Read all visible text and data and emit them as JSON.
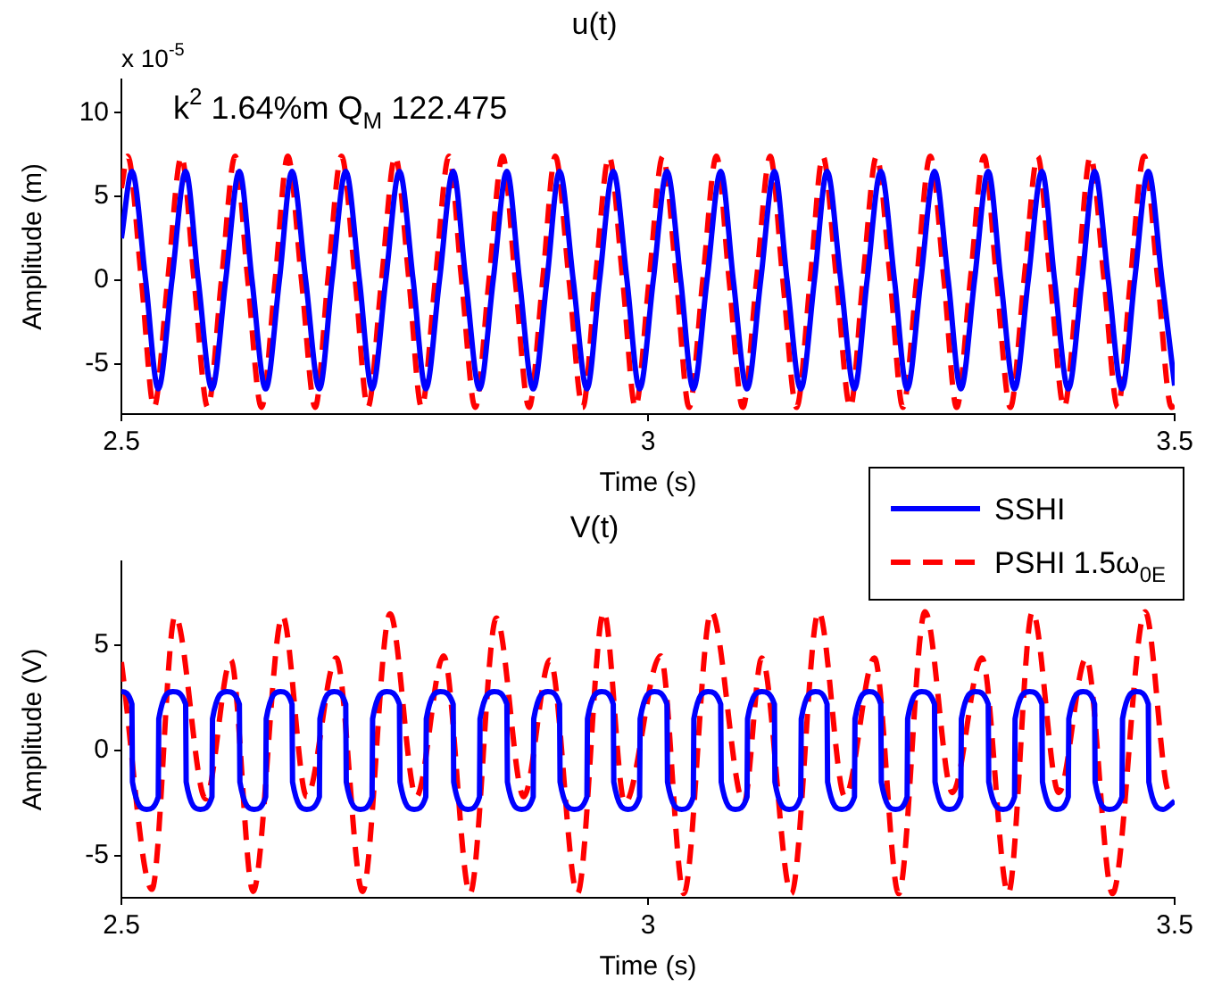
{
  "chart_data": [
    {
      "type": "line",
      "title": "u(t)",
      "xlabel": "Time (s)",
      "ylabel": "Amplitude (m)",
      "xlim": [
        2.5,
        3.5
      ],
      "xticks": [
        2.5,
        3,
        3.5
      ],
      "ylim": [
        -8,
        12
      ],
      "yticks": [
        -5,
        0,
        5,
        10
      ],
      "marker": "none",
      "annotations": [
        "x 10$^{-5}$",
        "k$^{2}$ 1.64%m Q$_{M}$ 122.475"
      ],
      "series": [
        {
          "color": "#0000ff",
          "line_style": "solid",
          "x": [
            2.5,
            2.51,
            2.523,
            2.535,
            2.548,
            2.561,
            2.573,
            2.586,
            2.599,
            2.612,
            2.624,
            2.637,
            2.65,
            2.662,
            2.675,
            2.688,
            2.7,
            2.713,
            2.726,
            2.738,
            2.751,
            2.764,
            2.777,
            2.789,
            2.802,
            2.815,
            2.827,
            2.84,
            2.853,
            2.866,
            2.878,
            2.891,
            2.904,
            2.916,
            2.929,
            2.942,
            2.954,
            2.967,
            2.98,
            2.992,
            3.005,
            3.018,
            3.031,
            3.043,
            3.056,
            3.069,
            3.081,
            3.094,
            3.107,
            3.12,
            3.132,
            3.145,
            3.158,
            3.17,
            3.183,
            3.196,
            3.208,
            3.221,
            3.234,
            3.246,
            3.259,
            3.272,
            3.285,
            3.297,
            3.31,
            3.323,
            3.335,
            3.348,
            3.361,
            3.374,
            3.386,
            3.399,
            3.412,
            3.424,
            3.437,
            3.45,
            3.462,
            3.475,
            3.488,
            3.5
          ],
          "values": [
            2.5,
            6.5,
            0,
            -6.5,
            0,
            6.5,
            0,
            -6.5,
            0,
            6.5,
            0,
            -6.5,
            0,
            6.5,
            0,
            -6.5,
            0,
            6.5,
            0,
            -6.5,
            0,
            6.5,
            0,
            -6.5,
            0,
            6.5,
            0,
            -6.5,
            0,
            6.5,
            0,
            -6.5,
            0,
            6.5,
            0,
            -6.5,
            0,
            6.5,
            0,
            -6.5,
            0,
            6.5,
            0,
            -6.5,
            0,
            6.5,
            0,
            -6.5,
            0,
            6.5,
            0,
            -6.5,
            0,
            6.5,
            0,
            -6.5,
            0,
            6.5,
            0,
            -6.5,
            0,
            6.5,
            0,
            -6.5,
            0,
            6.5,
            0,
            -6.5,
            0,
            6.5,
            0,
            -6.5,
            0,
            6.5,
            0,
            -6.5,
            0,
            6.5,
            0,
            -6.3
          ]
        },
        {
          "color": "#ff0000",
          "line_style": "dashed",
          "x": [
            2.5,
            2.506,
            2.519,
            2.531,
            2.544,
            2.557,
            2.569,
            2.582,
            2.595,
            2.608,
            2.62,
            2.633,
            2.646,
            2.658,
            2.671,
            2.684,
            2.696,
            2.709,
            2.722,
            2.734,
            2.747,
            2.76,
            2.773,
            2.785,
            2.798,
            2.811,
            2.823,
            2.836,
            2.849,
            2.862,
            2.874,
            2.887,
            2.9,
            2.912,
            2.925,
            2.938,
            2.95,
            2.963,
            2.976,
            2.988,
            3.001,
            3.014,
            3.027,
            3.039,
            3.052,
            3.065,
            3.077,
            3.09,
            3.103,
            3.116,
            3.128,
            3.141,
            3.154,
            3.166,
            3.179,
            3.192,
            3.204,
            3.217,
            3.23,
            3.242,
            3.255,
            3.268,
            3.281,
            3.293,
            3.306,
            3.319,
            3.331,
            3.344,
            3.357,
            3.37,
            3.382,
            3.395,
            3.408,
            3.42,
            3.433,
            3.446,
            3.458,
            3.471,
            3.484,
            3.497,
            3.5
          ],
          "values": [
            5.5,
            7.4,
            0,
            -7.6,
            0,
            7.4,
            0,
            -7.6,
            0,
            7.4,
            0,
            -7.6,
            0,
            7.4,
            0,
            -7.6,
            0,
            7.4,
            0,
            -7.6,
            0,
            7.4,
            0,
            -7.6,
            0,
            7.4,
            0,
            -7.6,
            0,
            7.4,
            0,
            -7.6,
            0,
            7.4,
            0,
            -7.6,
            0,
            7.4,
            0,
            -7.6,
            0,
            7.4,
            0,
            -7.6,
            0,
            7.4,
            0,
            -7.6,
            0,
            7.4,
            0,
            -7.6,
            0,
            7.4,
            0,
            -7.6,
            0,
            7.4,
            0,
            -7.6,
            0,
            7.4,
            0,
            -7.6,
            0,
            7.4,
            0,
            -7.6,
            0,
            7.4,
            0,
            -7.6,
            0,
            7.4,
            0,
            -7.6,
            0,
            7.4,
            0,
            -7.6,
            -7.5
          ]
        }
      ]
    },
    {
      "type": "line",
      "title": "V(t)",
      "xlabel": "Time (s)",
      "ylabel": "Amplitude (V)",
      "xlim": [
        2.5,
        3.5
      ],
      "xticks": [
        2.5,
        3,
        3.5
      ],
      "ylim": [
        -7,
        9
      ],
      "yticks": [
        -5,
        0,
        5
      ],
      "marker": "none",
      "legend": "top right",
      "series": [
        {
          "name": "SSHI",
          "color": "#0000ff",
          "line_style": "solid",
          "x": [
            2.5,
            2.51,
            2.5105,
            2.524,
            2.535,
            2.5355,
            2.549,
            2.561,
            2.5615,
            2.575,
            2.586,
            2.5865,
            2.6,
            2.612,
            2.6125,
            2.626,
            2.637,
            2.6375,
            2.651,
            2.662,
            2.6625,
            2.676,
            2.688,
            2.6885,
            2.702,
            2.713,
            2.7135,
            2.727,
            2.738,
            2.7385,
            2.752,
            2.764,
            2.7645,
            2.778,
            2.789,
            2.7895,
            2.803,
            2.815,
            2.8155,
            2.829,
            2.84,
            2.8405,
            2.854,
            2.866,
            2.8665,
            2.88,
            2.891,
            2.8915,
            2.905,
            2.916,
            2.9165,
            2.93,
            2.942,
            2.9425,
            2.956,
            2.967,
            2.9675,
            2.981,
            2.992,
            2.9925,
            3.006,
            3.018,
            3.0185,
            3.032,
            3.043,
            3.0435,
            3.057,
            3.069,
            3.0695,
            3.083,
            3.094,
            3.0945,
            3.108,
            3.12,
            3.1205,
            3.134,
            3.145,
            3.1455,
            3.159,
            3.17,
            3.1705,
            3.184,
            3.196,
            3.1965,
            3.21,
            3.221,
            3.2215,
            3.235,
            3.246,
            3.2465,
            3.26,
            3.272,
            3.2725,
            3.286,
            3.297,
            3.2975,
            3.311,
            3.323,
            3.3235,
            3.337,
            3.348,
            3.3485,
            3.362,
            3.374,
            3.3745,
            3.388,
            3.399,
            3.3995,
            3.413,
            3.424,
            3.4245,
            3.438,
            3.45,
            3.4505,
            3.464,
            3.475,
            3.4755,
            3.489,
            3.5
          ],
          "values": [
            2.8,
            2.2,
            -1.5,
            -2.8,
            -2.2,
            1.5,
            2.8,
            2.2,
            -1.5,
            -2.8,
            -2.2,
            1.5,
            2.8,
            2.2,
            -1.5,
            -2.8,
            -2.2,
            1.5,
            2.8,
            2.2,
            -1.5,
            -2.8,
            -2.2,
            1.5,
            2.8,
            2.2,
            -1.5,
            -2.8,
            -2.2,
            1.5,
            2.8,
            2.2,
            -1.5,
            -2.8,
            -2.2,
            1.5,
            2.8,
            2.2,
            -1.5,
            -2.8,
            -2.2,
            1.5,
            2.8,
            2.2,
            -1.5,
            -2.8,
            -2.2,
            1.5,
            2.8,
            2.2,
            -1.5,
            -2.8,
            -2.2,
            1.5,
            2.8,
            2.2,
            -1.5,
            -2.8,
            -2.2,
            1.5,
            2.8,
            2.2,
            -1.5,
            -2.8,
            -2.2,
            1.5,
            2.8,
            2.2,
            -1.5,
            -2.8,
            -2.2,
            1.5,
            2.8,
            2.2,
            -1.5,
            -2.8,
            -2.2,
            1.5,
            2.8,
            2.2,
            -1.5,
            -2.8,
            -2.2,
            1.5,
            2.8,
            2.2,
            -1.5,
            -2.8,
            -2.2,
            1.5,
            2.8,
            2.2,
            -1.5,
            -2.8,
            -2.2,
            1.5,
            2.8,
            2.2,
            -1.5,
            -2.8,
            -2.2,
            1.5,
            2.8,
            2.2,
            -1.5,
            -2.8,
            -2.2,
            1.5,
            2.8,
            2.2,
            -1.5,
            -2.8,
            -2.2,
            1.5,
            2.8,
            2.2,
            -1.5,
            -2.8,
            -2.4
          ]
        },
        {
          "name": "PSHI 1.5ω$_{0E}$",
          "color": "#ff0000",
          "line_style": "dashed",
          "x": [
            2.5,
            2.529,
            2.551,
            2.58,
            2.604,
            2.625,
            2.653,
            2.676,
            2.704,
            2.729,
            2.755,
            2.78,
            2.806,
            2.831,
            2.856,
            2.882,
            2.907,
            2.933,
            2.958,
            2.978,
            3.012,
            3.034,
            3.06,
            3.091,
            3.108,
            3.136,
            3.162,
            3.187,
            3.215,
            3.238,
            3.263,
            3.289,
            3.317,
            3.342,
            3.365,
            3.39,
            3.416,
            3.441,
            3.472,
            3.495,
            3.5
          ],
          "values": [
            4.2,
            -6.6,
            6.4,
            -2.3,
            4.3,
            -6.7,
            6.4,
            -2.2,
            4.4,
            -6.7,
            6.5,
            -2.2,
            4.5,
            -6.8,
            6.3,
            -2.2,
            4.3,
            -6.8,
            6.6,
            -2.5,
            4.5,
            -6.8,
            6.6,
            -2.5,
            4.4,
            -6.8,
            6.6,
            -2.2,
            4.4,
            -6.8,
            6.6,
            -2.0,
            4.4,
            -6.8,
            6.6,
            -2.0,
            4.4,
            -6.8,
            6.6,
            -2.0,
            -1.8
          ]
        }
      ]
    }
  ]
}
